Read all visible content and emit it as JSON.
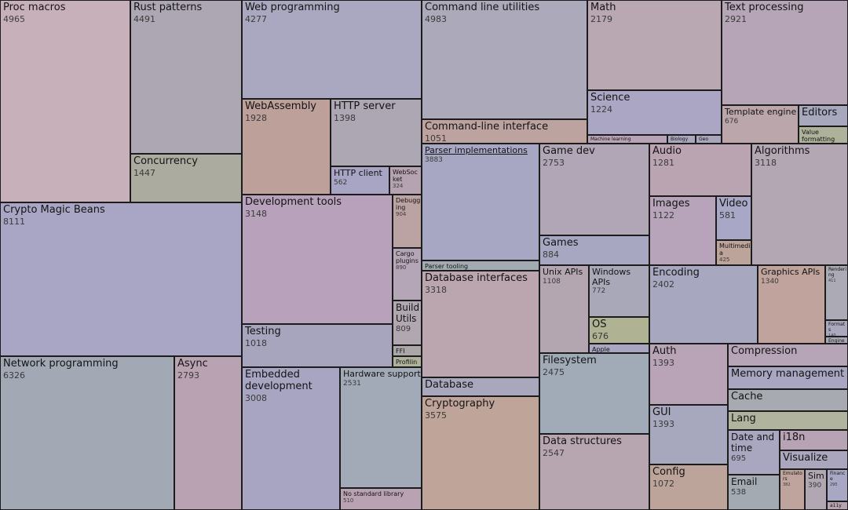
{
  "chart_data": {
    "type": "treemap",
    "items": [
      {
        "name": "Proc macros",
        "value": 4965,
        "color": "#b9a3ad"
      },
      {
        "name": "Rust patterns",
        "value": 4491,
        "color": "#ada7b3"
      },
      {
        "name": "Concurrency",
        "value": 1447,
        "color": "#abab9f"
      },
      {
        "name": "Crypto Magic Beans",
        "value": 8111,
        "color": "#a9a5c4"
      },
      {
        "name": "Network programming",
        "value": 6326,
        "color": "#a3a8b5"
      },
      {
        "name": "Async",
        "value": 2793,
        "color": "#b9a3b2"
      },
      {
        "name": "Web programming",
        "value": 4277,
        "color": "#a9a8c0"
      },
      {
        "name": "WebAssembly",
        "value": 1928,
        "color": "#bda09a"
      },
      {
        "name": "HTTP server",
        "value": 1398,
        "color": "#aca7b3"
      },
      {
        "name": "HTTP client",
        "value": 562,
        "color": "#a7a5c3"
      },
      {
        "name": "WebSocket",
        "value": 324,
        "color": "#b6a3b2"
      },
      {
        "name": "Development tools",
        "value": 3148,
        "color": "#b8a2bb"
      },
      {
        "name": "Debugging",
        "value": 904,
        "color": "#bca3a3"
      },
      {
        "name": "Cargo plugins",
        "value": 890,
        "color": "#b5a6b7"
      },
      {
        "name": "Build Utils",
        "value": 809,
        "color": "#b1a7b1"
      },
      {
        "name": "FFI",
        "value": null,
        "color": "#aba7a9"
      },
      {
        "name": "Profiling",
        "value": null,
        "color": "#aeb29a"
      },
      {
        "name": "Testing",
        "value": 1018,
        "color": "#a6a5bd"
      },
      {
        "name": "Embedded development",
        "value": 3008,
        "color": "#a7a5c2"
      },
      {
        "name": "Hardware support",
        "value": 2531,
        "color": "#a3aab7"
      },
      {
        "name": "No standard library",
        "value": 510,
        "color": "#b9a3b2"
      },
      {
        "name": "Command line utilities",
        "value": 4983,
        "color": "#aca9ba"
      },
      {
        "name": "Command-line interface",
        "value": 1051,
        "color": "#bca39f"
      },
      {
        "name": "Parser implementations",
        "value": 3883,
        "color": "#a8a7c3"
      },
      {
        "name": "Parser tooling",
        "value": null,
        "color": "#a3abb2"
      },
      {
        "name": "Database interfaces",
        "value": 3318,
        "color": "#bba6b0"
      },
      {
        "name": "Database",
        "value": null,
        "color": "#a8a7bc"
      },
      {
        "name": "Cryptography",
        "value": 3575,
        "color": "#bea499"
      },
      {
        "name": "Math",
        "value": 2179,
        "color": "#b9a7b2"
      },
      {
        "name": "Science",
        "value": 1224,
        "color": "#aaa6c4"
      },
      {
        "name": "Machine learning",
        "value": null,
        "color": "#b8a3b6"
      },
      {
        "name": "Biology",
        "value": null,
        "color": "#a9a7bd"
      },
      {
        "name": "Geo",
        "value": null,
        "color": "#a9a5bb"
      },
      {
        "name": "Text processing",
        "value": 2921,
        "color": "#b5a5b6"
      },
      {
        "name": "Template engine",
        "value": 676,
        "color": "#bba6ab"
      },
      {
        "name": "Editors",
        "value": null,
        "color": "#a7a7be"
      },
      {
        "name": "Value formatting",
        "value": 385,
        "color": "#aeb29a"
      },
      {
        "name": "Game dev",
        "value": 2753,
        "color": "#b0a6b6"
      },
      {
        "name": "Games",
        "value": 884,
        "color": "#a8a7c1"
      },
      {
        "name": "Audio",
        "value": 1281,
        "color": "#bba4b2"
      },
      {
        "name": "Algorithms",
        "value": 3118,
        "color": "#b2a7b3"
      },
      {
        "name": "Images",
        "value": 1122,
        "color": "#b7a3ba"
      },
      {
        "name": "Video",
        "value": 581,
        "color": "#a8a7c5"
      },
      {
        "name": "Multimedia",
        "value": 425,
        "color": "#bca49a"
      },
      {
        "name": "Unix APIs",
        "value": 1108,
        "color": "#b4a6b0"
      },
      {
        "name": "Windows APIs",
        "value": 772,
        "color": "#a9a8b8"
      },
      {
        "name": "OS",
        "value": 676,
        "color": "#afb394"
      },
      {
        "name": "Apple",
        "value": null,
        "color": "#a9a6c2"
      },
      {
        "name": "Filesystem",
        "value": 2475,
        "color": "#a1abb7"
      },
      {
        "name": "Data structures",
        "value": 2547,
        "color": "#b7a6b0"
      },
      {
        "name": "Encoding",
        "value": 2402,
        "color": "#a8a7c0"
      },
      {
        "name": "Graphics APIs",
        "value": 1340,
        "color": "#bfa39c"
      },
      {
        "name": "Rendering",
        "value": 411,
        "color": "#acaab5"
      },
      {
        "name": "Formats",
        "value": 140,
        "color": "#a9a8bd"
      },
      {
        "name": "Engine",
        "value": null,
        "color": "#aba9b5"
      },
      {
        "name": "Auth",
        "value": 1393,
        "color": "#b8a4b6"
      },
      {
        "name": "GUI",
        "value": 1393,
        "color": "#a7a8bd"
      },
      {
        "name": "Config",
        "value": 1072,
        "color": "#bda49a"
      },
      {
        "name": "Compression",
        "value": null,
        "color": "#b6a5b6"
      },
      {
        "name": "Memory management",
        "value": null,
        "color": "#a9a6c1"
      },
      {
        "name": "Cache",
        "value": null,
        "color": "#a8aab2"
      },
      {
        "name": "Lang",
        "value": null,
        "color": "#b0b39d"
      },
      {
        "name": "Date and time",
        "value": 695,
        "color": "#a9a6c0"
      },
      {
        "name": "i18n",
        "value": null,
        "color": "#b7a3b3"
      },
      {
        "name": "Visualize",
        "value": null,
        "color": "#a9a6bd"
      },
      {
        "name": "Email",
        "value": 538,
        "color": "#a3aab2"
      },
      {
        "name": "Emulators",
        "value": 382,
        "color": "#bea49d"
      },
      {
        "name": "Sim",
        "value": 390,
        "color": "#b0a7b3"
      },
      {
        "name": "Finance",
        "value": 295,
        "color": "#a8a7c4"
      },
      {
        "name": "a11y",
        "value": null,
        "color": "#b9a3b1"
      }
    ]
  }
}
